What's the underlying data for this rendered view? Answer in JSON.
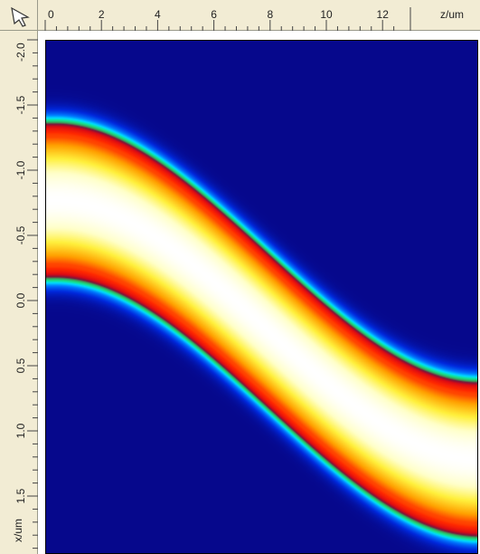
{
  "rulers": {
    "horizontal": {
      "unit_label": "z/um",
      "ticks": [
        "0",
        "2",
        "4",
        "6",
        "8",
        "10",
        "12"
      ]
    },
    "vertical": {
      "unit_label": "x/um",
      "ticks": [
        "-2.0",
        "-1.5",
        "-1.0",
        "-0.5",
        "0.0",
        "0.5",
        "1.0",
        "1.5"
      ]
    }
  },
  "icons": {
    "corner": "pointer-arrow-icon"
  },
  "plot": {
    "type": "heatmap",
    "description_colormap": [
      "#06088c",
      "#0050ff",
      "#00d0ff",
      "#10e090",
      "#7a1030",
      "#ff1000",
      "#ff9000",
      "#ffff40",
      "#ffffff"
    ]
  }
}
